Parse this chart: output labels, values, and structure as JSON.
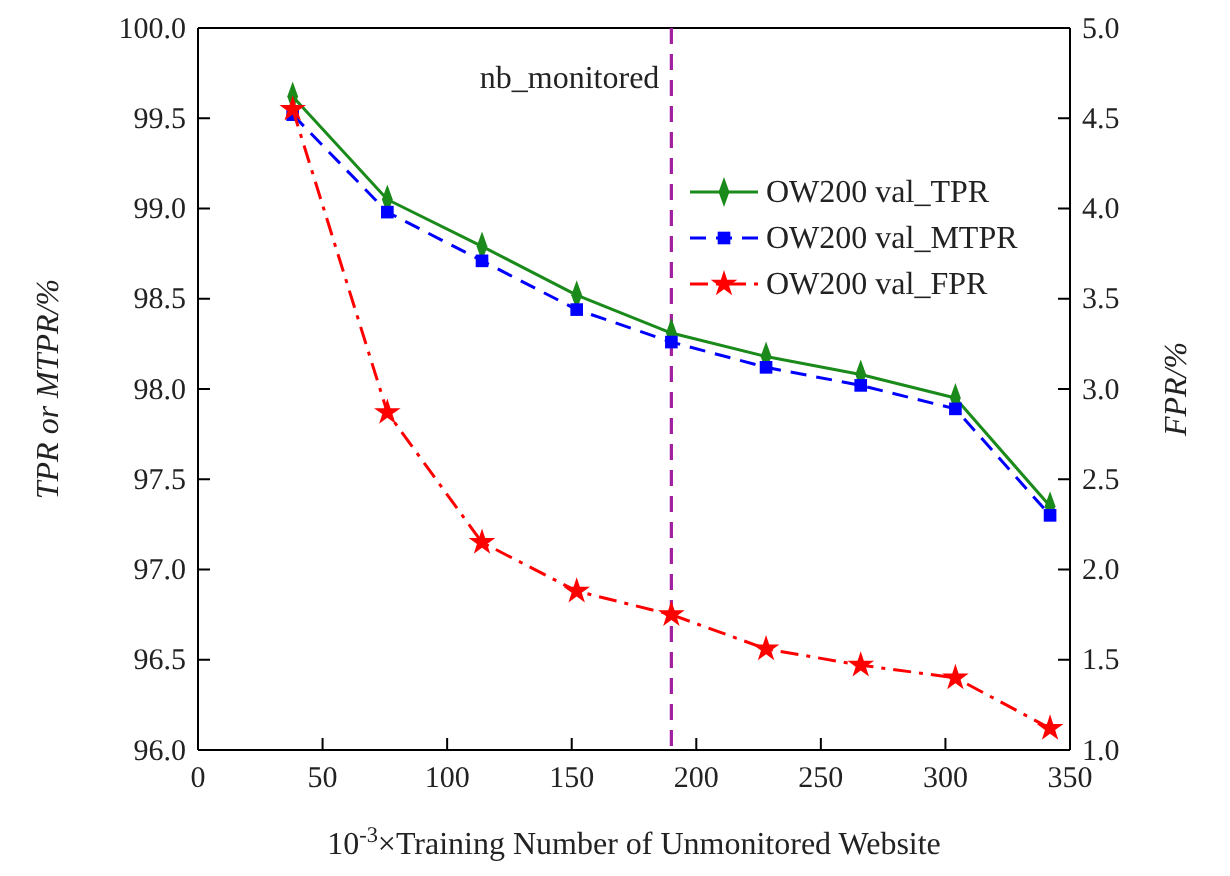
{
  "chart_data": {
    "type": "line",
    "xlabel": "10$^{-3}$×Training Number of Unmonitored Website",
    "ylabel": "TPR or MTPR/%",
    "y2label": "FPR/%",
    "x": [
      38,
      76,
      114,
      152,
      190,
      228,
      266,
      304,
      342
    ],
    "xlim": [
      0,
      350
    ],
    "xticks": [
      0,
      50,
      100,
      150,
      200,
      250,
      300,
      350
    ],
    "ylim": [
      96,
      100
    ],
    "yticks": [
      {
        "value": 96,
        "label": "96.0"
      },
      {
        "value": 96.5,
        "label": "96.5"
      },
      {
        "value": 97,
        "label": "97.0"
      },
      {
        "value": 97.5,
        "label": "97.5"
      },
      {
        "value": 98,
        "label": "98.0"
      },
      {
        "value": 98.5,
        "label": "98.5"
      },
      {
        "value": 99,
        "label": "99.0"
      },
      {
        "value": 99.5,
        "label": "99.5"
      },
      {
        "value": 100,
        "label": "100.0"
      }
    ],
    "y2lim": [
      1,
      5
    ],
    "y2ticks": [
      {
        "value": 1,
        "label": "1.0"
      },
      {
        "value": 1.5,
        "label": "1.5"
      },
      {
        "value": 2,
        "label": "2.0"
      },
      {
        "value": 2.5,
        "label": "2.5"
      },
      {
        "value": 3,
        "label": "3.0"
      },
      {
        "value": 3.5,
        "label": "3.5"
      },
      {
        "value": 4,
        "label": "4.0"
      },
      {
        "value": 4.5,
        "label": "4.5"
      },
      {
        "value": 5,
        "label": "5.0"
      }
    ],
    "series": [
      {
        "name": "OW200 val_TPR",
        "color": "#1a8a1a",
        "marker": "diamond",
        "line_style": "solid",
        "values": [
          99.62,
          99.05,
          98.79,
          98.52,
          98.31,
          98.18,
          98.08,
          97.95,
          97.35
        ]
      },
      {
        "name": "OW200 val_MTPR",
        "color": "#0000ff",
        "marker": "square",
        "line_style": "dashed",
        "values": [
          99.52,
          98.98,
          98.71,
          98.44,
          98.26,
          98.12,
          98.02,
          97.89,
          97.3
        ]
      },
      {
        "name": "OW200 val_FPR",
        "color": "#ff0000",
        "marker": "star",
        "line_style": "dashdot",
        "axis": "y2",
        "values": [
          4.55,
          2.87,
          2.15,
          1.88,
          1.75,
          1.56,
          1.47,
          1.4,
          1.12
        ]
      }
    ],
    "ref_lines": [
      {
        "axis": "x",
        "value": 190,
        "label": "nb_monitored",
        "color": "#a020a0",
        "line_style": "dashed"
      }
    ],
    "legend": "top right",
    "grid": false
  }
}
